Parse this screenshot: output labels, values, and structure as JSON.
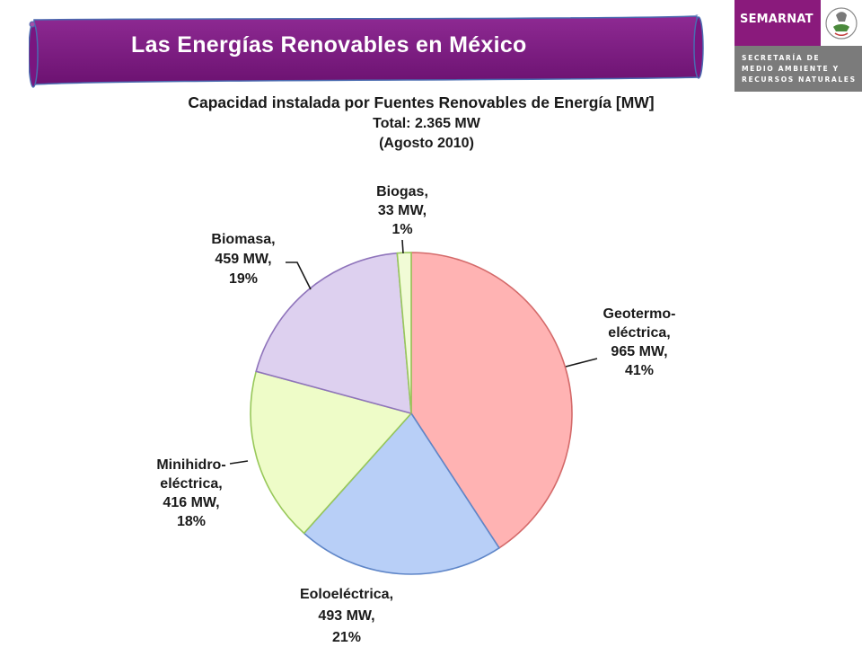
{
  "header": {
    "title": "Las Energías Renovables en México",
    "banner_color": "#7a1680"
  },
  "logo": {
    "name": "SEMARNAT",
    "subtitle_lines": [
      "SECRETARÍA DE",
      "MEDIO AMBIENTE Y",
      "RECURSOS NATURALES"
    ],
    "seal_icon": "mexican-eagle-seal-icon",
    "brand_color": "#8a1a7c"
  },
  "chart_data": {
    "type": "pie",
    "title": "Capacidad instalada por Fuentes Renovables de Energía [MW]",
    "subtitle_lines": [
      "Total:  2.365 MW",
      "(Agosto 2010)"
    ],
    "unit": "MW",
    "start_angle_deg": 0,
    "direction": "clockwise",
    "slices": [
      {
        "name": "Geotermo-eléctrica",
        "value": 965,
        "percent": 41,
        "label_lines": [
          "Geotermo-",
          "eléctrica,",
          "965 MW,",
          "41%"
        ],
        "fill": "#ffb3b3",
        "stroke": "#d46a6a"
      },
      {
        "name": "Eoloeléctrica",
        "value": 493,
        "percent": 21,
        "label_lines": [
          "Eoloeléctrica,",
          "493 MW,",
          "21%"
        ],
        "fill": "#b8cff7",
        "stroke": "#5f86c8"
      },
      {
        "name": "Minihidro-eléctrica",
        "value": 416,
        "percent": 18,
        "label_lines": [
          "Minihidro-",
          "eléctrica,",
          "416 MW,",
          "18%"
        ],
        "fill": "#eefcc8",
        "stroke": "#98c85a"
      },
      {
        "name": "Biomasa",
        "value": 459,
        "percent": 19,
        "label_lines": [
          "Biomasa,",
          "459 MW,",
          "19%"
        ],
        "fill": "#ddd0ef",
        "stroke": "#8f74bb"
      },
      {
        "name": "Biogas",
        "value": 33,
        "percent": 1,
        "label_lines": [
          "Biogas,",
          "33 MW,",
          "1%"
        ],
        "fill": "#f1fbd6",
        "stroke": "#98c85a"
      }
    ]
  }
}
